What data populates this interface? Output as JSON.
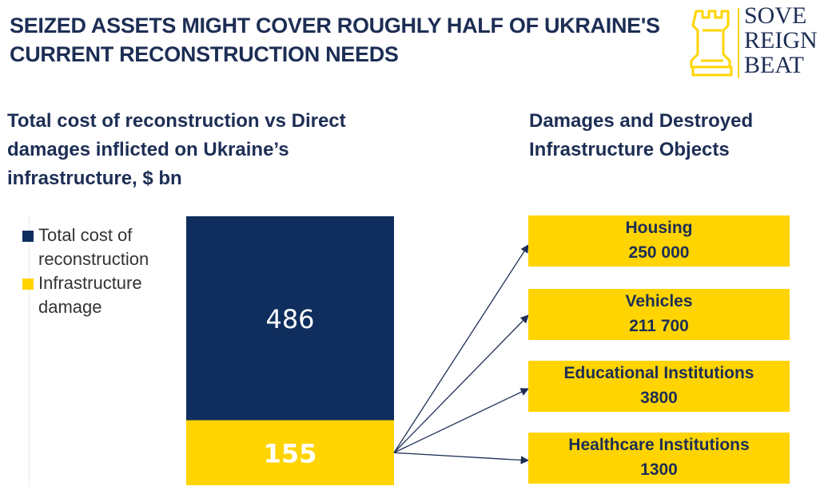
{
  "headline": "SEIZED ASSETS MIGHT COVER ROUGHLY HALF OF UKRAINE'S CURRENT RECONSTRUCTION NEEDS",
  "logo": {
    "lines": [
      "SOVE",
      "REIGN",
      "BEAT"
    ],
    "icon": "rook-chess-icon",
    "icon_color": "#ffd400",
    "text_color": "#1d2e55"
  },
  "chart_title": "Total cost of reconstruction vs Direct damages inflicted on Ukraine’s infrastructure, $ bn",
  "objects_title": "Damages and Destroyed Infrastructure Objects",
  "colors": {
    "navy": "#1d2e55",
    "dark_bar": "#0f2e5e",
    "yellow": "#ffd400"
  },
  "chart_data": {
    "type": "bar",
    "stacked": true,
    "categories": [
      ""
    ],
    "series": [
      {
        "name": "Infrastructure damage",
        "values": [
          155
        ],
        "color": "#ffd400",
        "label_color": "#ffffff"
      },
      {
        "name": "Total cost of reconstruction",
        "values": [
          486
        ],
        "color": "#0f2e5e",
        "label_color": "#ffffff"
      }
    ],
    "legend": [
      "Total cost of reconstruction",
      "Infrastructure damage"
    ],
    "legend_placement": "left",
    "grid": false
  },
  "objects": [
    {
      "label": "Housing",
      "value": "250 000"
    },
    {
      "label": "Vehicles",
      "value": "211 700"
    },
    {
      "label": "Educational Institutions",
      "value": "3800"
    },
    {
      "label": "Healthcare Institutions",
      "value": "1300"
    }
  ]
}
